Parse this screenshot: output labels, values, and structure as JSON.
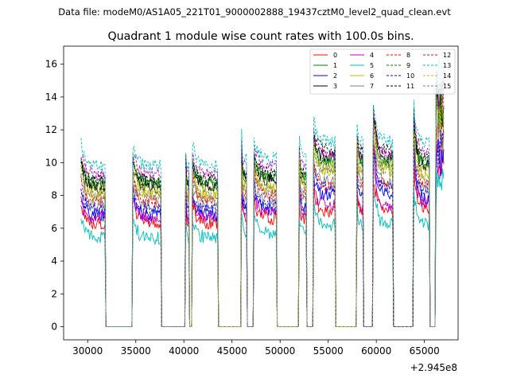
{
  "figure": {
    "suptitle": "Data file: modeM0/AS1A05_221T01_9000002888_19437cztM0_level2_quad_clean.evt"
  },
  "chart_data": {
    "type": "line",
    "title": "Quadrant 1 module wise count rates with 100.0s bins.",
    "xlabel": "",
    "ylabel": "",
    "x_offset_label": "+2.945e8",
    "xlim": [
      27500,
      68500
    ],
    "ylim": [
      -0.8,
      17.1
    ],
    "x_ticks": [
      30000,
      35000,
      40000,
      45000,
      50000,
      55000,
      60000,
      65000
    ],
    "x_tick_labels": [
      "30000",
      "35000",
      "40000",
      "45000",
      "50000",
      "55000",
      "60000",
      "65000"
    ],
    "y_ticks": [
      0,
      2,
      4,
      6,
      8,
      10,
      12,
      14,
      16
    ],
    "y_tick_labels": [
      "0",
      "2",
      "4",
      "6",
      "8",
      "10",
      "12",
      "14",
      "16"
    ],
    "grid": false,
    "legend_position": "top-right",
    "bin_seconds": 100,
    "active_intervals": [
      {
        "start": 29300,
        "end": 31800
      },
      {
        "start": 34700,
        "end": 37600
      },
      {
        "start": 40200,
        "end": 40500
      },
      {
        "start": 40900,
        "end": 43500
      },
      {
        "start": 46000,
        "end": 46500
      },
      {
        "start": 47300,
        "end": 49600
      },
      {
        "start": 52000,
        "end": 52700
      },
      {
        "start": 53500,
        "end": 55700
      },
      {
        "start": 58000,
        "end": 58600
      },
      {
        "start": 59700,
        "end": 61700
      },
      {
        "start": 63900,
        "end": 65500
      },
      {
        "start": 66200,
        "end": 67000
      }
    ],
    "series": [
      {
        "name": "0",
        "color": "#ff0000",
        "dashed": false,
        "level": 6.3
      },
      {
        "name": "1",
        "color": "#008000",
        "dashed": false,
        "level": 8.7
      },
      {
        "name": "2",
        "color": "#0000ff",
        "dashed": false,
        "level": 6.8
      },
      {
        "name": "3",
        "color": "#000000",
        "dashed": false,
        "level": 8.5
      },
      {
        "name": "4",
        "color": "#bf00bf",
        "dashed": false,
        "level": 6.6
      },
      {
        "name": "5",
        "color": "#00bfbf",
        "dashed": false,
        "level": 5.4
      },
      {
        "name": "6",
        "color": "#bfbf00",
        "dashed": false,
        "level": 8.0
      },
      {
        "name": "7",
        "color": "#808080",
        "dashed": false,
        "level": 7.3
      },
      {
        "name": "8",
        "color": "#ff0000",
        "dashed": true,
        "level": 7.6
      },
      {
        "name": "9",
        "color": "#008000",
        "dashed": true,
        "level": 8.8
      },
      {
        "name": "10",
        "color": "#0000ff",
        "dashed": true,
        "level": 7.1
      },
      {
        "name": "11",
        "color": "#000000",
        "dashed": true,
        "level": 8.9
      },
      {
        "name": "12",
        "color": "#bf00bf",
        "dashed": true,
        "level": 9.3
      },
      {
        "name": "13",
        "color": "#00bfbf",
        "dashed": true,
        "level": 9.8
      },
      {
        "name": "14",
        "color": "#bfbf00",
        "dashed": true,
        "level": 8.3
      },
      {
        "name": "15",
        "color": "#808080",
        "dashed": true,
        "level": 7.9
      }
    ]
  }
}
